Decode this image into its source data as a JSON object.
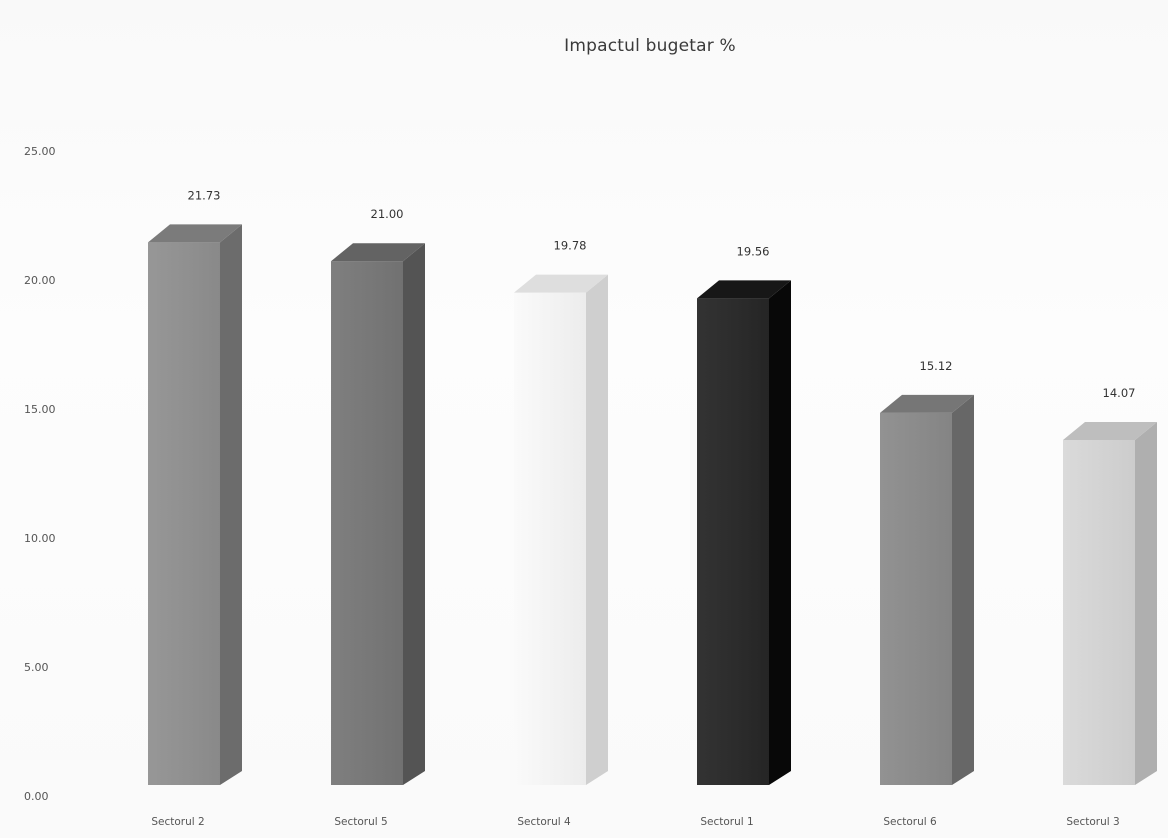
{
  "chart_data": {
    "type": "bar",
    "title": "Impactul bugetar %",
    "xlabel": "",
    "ylabel": "",
    "ylim": [
      0,
      25
    ],
    "yticks": [
      "0.00",
      "5.00",
      "10.00",
      "15.00",
      "20.00",
      "25.00"
    ],
    "categories": [
      "Sectorul 2",
      "Sectorul 5",
      "Sectorul 4",
      "Sectorul 1",
      "Sectorul 6",
      "Sectorul 3"
    ],
    "values": [
      21.73,
      21.0,
      19.78,
      19.56,
      15.12,
      14.07
    ],
    "value_labels": [
      "21.73",
      "21.00",
      "19.78",
      "19.56",
      "15.12",
      "14.07"
    ],
    "bar_colors": [
      "#8f8f8f",
      "#777777",
      "#f2f2f2",
      "#2b2b2b",
      "#8a8a8a",
      "#d2d2d2"
    ],
    "grid": false,
    "legend": "none",
    "style": "3d-column"
  }
}
